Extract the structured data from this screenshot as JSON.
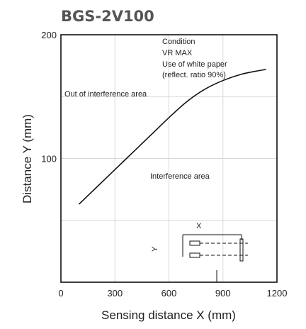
{
  "chart_data": {
    "type": "line",
    "title": "BGS-2V100",
    "xlabel": "Sensing distance X (mm)",
    "ylabel": "Distance Y (mm)",
    "xlim": [
      0,
      1200
    ],
    "ylim": [
      0,
      200
    ],
    "xticks": [
      0,
      300,
      600,
      900,
      1200
    ],
    "yticks": [
      100,
      200
    ],
    "grid": true,
    "series": [
      {
        "x": [
          100,
          200,
          300,
          400,
          500,
          600,
          700,
          800,
          900,
          1000,
          1100,
          1140
        ],
        "y": [
          63,
          77,
          91,
          105,
          119,
          133,
          146,
          156,
          163,
          168,
          171,
          172
        ]
      }
    ],
    "annotations": {
      "condition": [
        "Condition",
        "VR MAX",
        "Use of white paper",
        "(reflect. ratio 90%)"
      ],
      "out_area": "Out of interference area",
      "in_area": "Interference area",
      "inset_x": "X",
      "inset_y": "Y"
    },
    "colors": {
      "line": "#111111",
      "title": "#555555",
      "grid": "#d8d8d8"
    }
  }
}
